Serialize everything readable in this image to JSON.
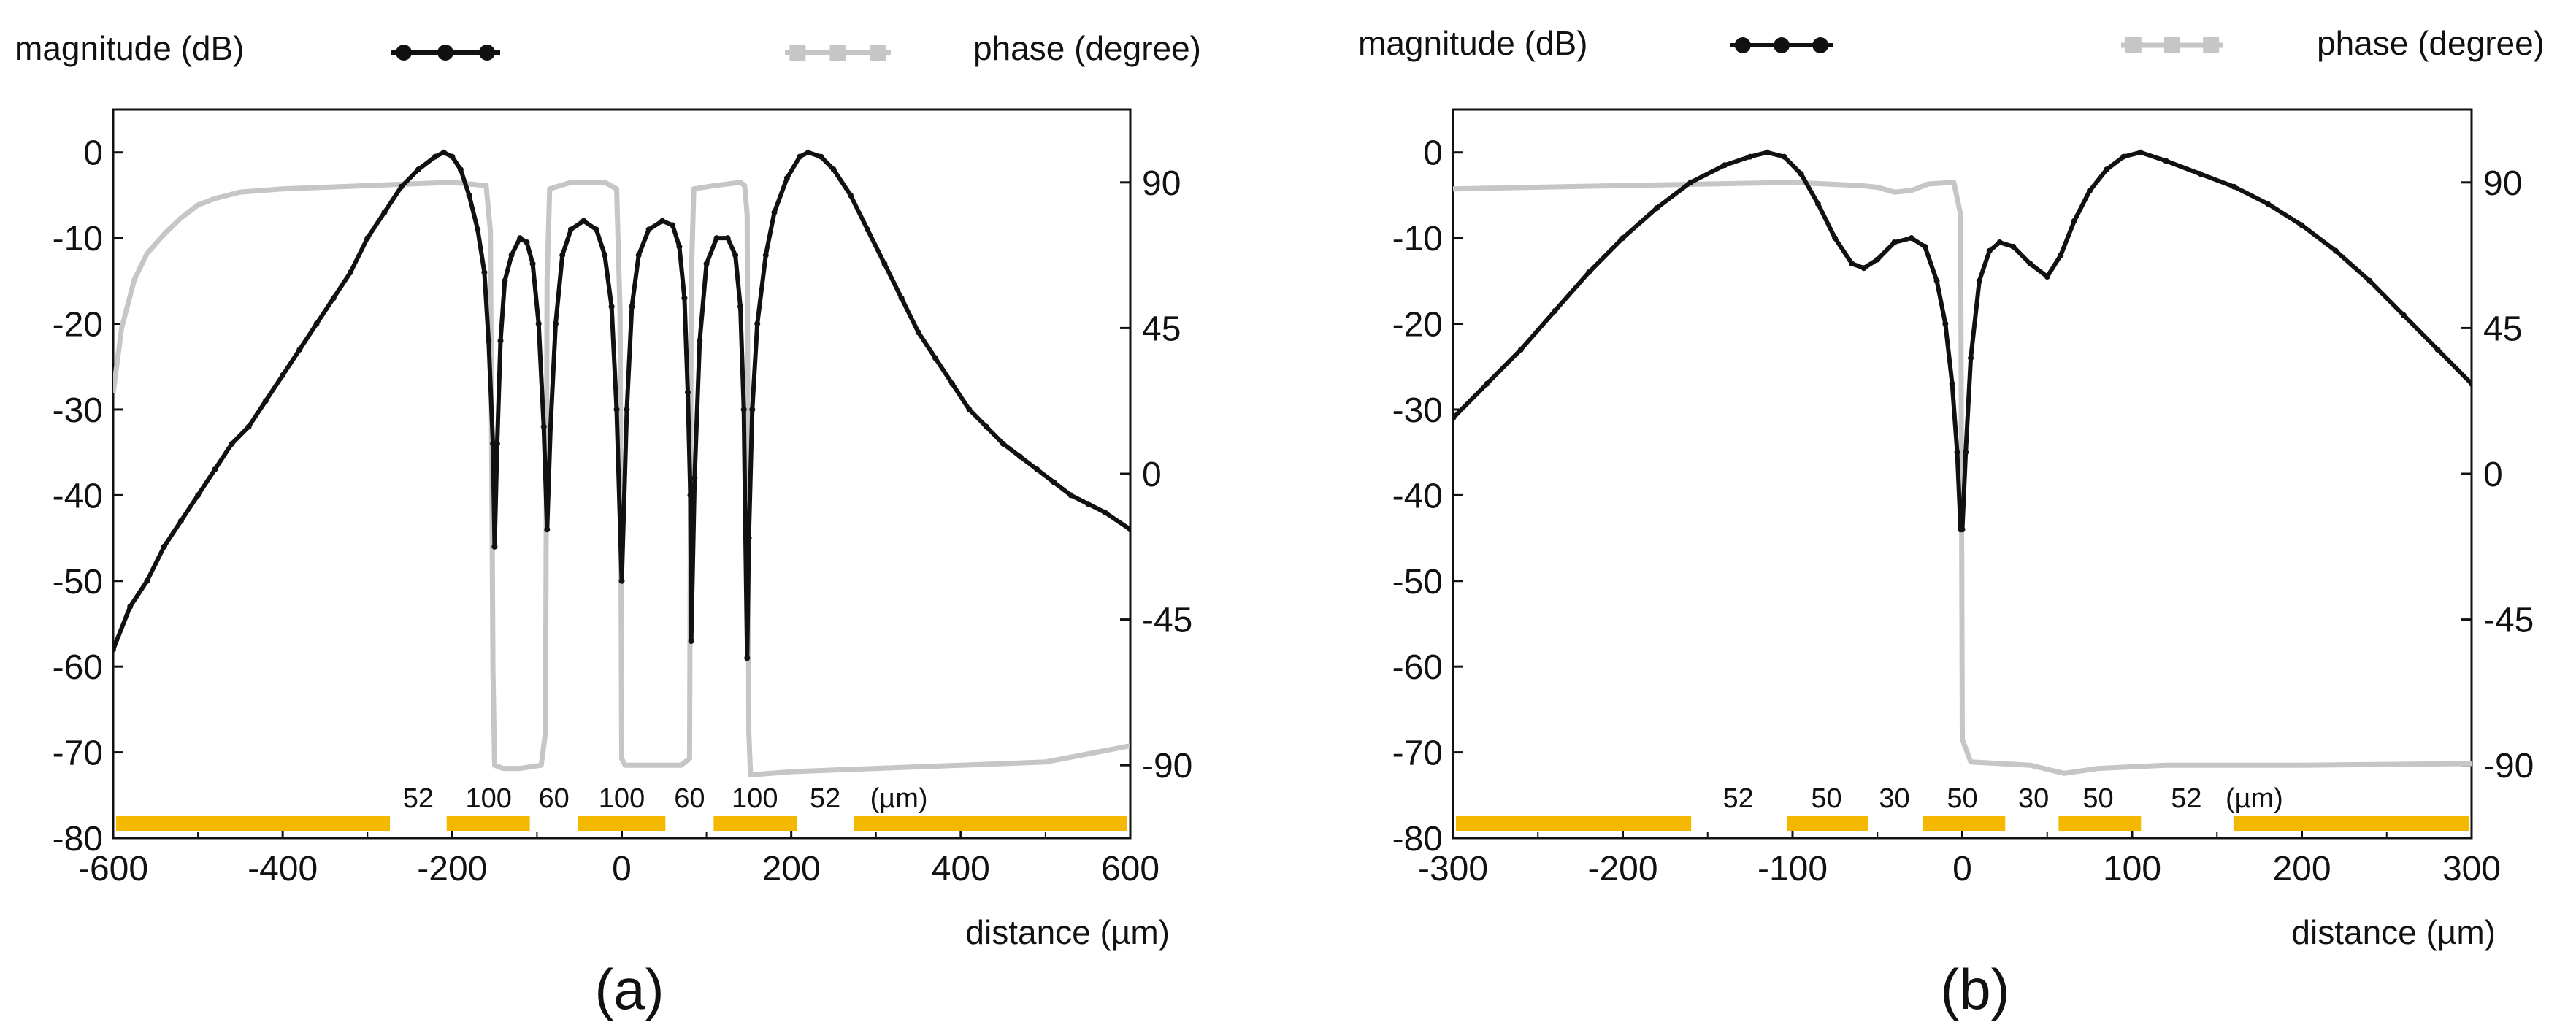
{
  "chart_data": [
    {
      "id": "a",
      "type": "line",
      "panel_label": "(a)",
      "xlabel": "distance (µm)",
      "ylabel_left": "magnitude (dB)",
      "ylabel_right": "phase (degree)",
      "xlim": [
        -600,
        600
      ],
      "ylim_left": [
        -80,
        5
      ],
      "ylim_right": [
        -112.5,
        112.5
      ],
      "x_ticks": [
        -600,
        -400,
        -200,
        0,
        200,
        400,
        600
      ],
      "y_ticks_left": [
        0,
        -10,
        -20,
        -30,
        -40,
        -50,
        -60,
        -70,
        -80
      ],
      "y_ticks_right": [
        90,
        45,
        0,
        -45,
        -90
      ],
      "legend": [
        {
          "label": "magnitude (dB)",
          "color": "#111111",
          "marker": "circle"
        },
        {
          "label": "phase (degree)",
          "color": "#c6c6c6",
          "marker": "square"
        }
      ],
      "series": [
        {
          "name": "magnitude (dB)",
          "axis": "left",
          "color": "#111111",
          "points": [
            [
              -600,
              -58
            ],
            [
              -580,
              -53
            ],
            [
              -560,
              -50
            ],
            [
              -540,
              -46
            ],
            [
              -520,
              -43
            ],
            [
              -500,
              -40
            ],
            [
              -480,
              -37
            ],
            [
              -460,
              -34
            ],
            [
              -440,
              -32
            ],
            [
              -420,
              -29
            ],
            [
              -400,
              -26
            ],
            [
              -380,
              -23
            ],
            [
              -360,
              -20
            ],
            [
              -340,
              -17
            ],
            [
              -320,
              -14
            ],
            [
              -300,
              -10
            ],
            [
              -280,
              -7
            ],
            [
              -260,
              -4
            ],
            [
              -240,
              -2
            ],
            [
              -220,
              -0.5
            ],
            [
              -210,
              0
            ],
            [
              -200,
              -0.5
            ],
            [
              -190,
              -2
            ],
            [
              -180,
              -5
            ],
            [
              -170,
              -9
            ],
            [
              -162,
              -14
            ],
            [
              -157,
              -22
            ],
            [
              -152,
              -34
            ],
            [
              -150,
              -46
            ],
            [
              -147,
              -34
            ],
            [
              -143,
              -22
            ],
            [
              -138,
              -15
            ],
            [
              -130,
              -12
            ],
            [
              -120,
              -10
            ],
            [
              -112,
              -10.5
            ],
            [
              -105,
              -13
            ],
            [
              -98,
              -20
            ],
            [
              -92,
              -32
            ],
            [
              -88,
              -44
            ],
            [
              -84,
              -32
            ],
            [
              -78,
              -20
            ],
            [
              -70,
              -12
            ],
            [
              -60,
              -9
            ],
            [
              -45,
              -8
            ],
            [
              -30,
              -9
            ],
            [
              -20,
              -12
            ],
            [
              -12,
              -18
            ],
            [
              -6,
              -30
            ],
            [
              0,
              -50
            ],
            [
              6,
              -30
            ],
            [
              12,
              -18
            ],
            [
              20,
              -12
            ],
            [
              32,
              -9
            ],
            [
              48,
              -8
            ],
            [
              60,
              -8.5
            ],
            [
              68,
              -11
            ],
            [
              74,
              -17
            ],
            [
              78,
              -28
            ],
            [
              81,
              -40
            ],
            [
              82,
              -57
            ],
            [
              86,
              -38
            ],
            [
              92,
              -22
            ],
            [
              100,
              -13
            ],
            [
              112,
              -10
            ],
            [
              125,
              -10
            ],
            [
              134,
              -12
            ],
            [
              140,
              -18
            ],
            [
              144,
              -30
            ],
            [
              146,
              -45
            ],
            [
              148,
              -59
            ],
            [
              150,
              -45
            ],
            [
              154,
              -30
            ],
            [
              160,
              -20
            ],
            [
              170,
              -12
            ],
            [
              180,
              -7
            ],
            [
              195,
              -3
            ],
            [
              210,
              -0.5
            ],
            [
              220,
              0
            ],
            [
              235,
              -0.5
            ],
            [
              250,
              -2
            ],
            [
              270,
              -5
            ],
            [
              290,
              -9
            ],
            [
              310,
              -13
            ],
            [
              330,
              -17
            ],
            [
              350,
              -21
            ],
            [
              370,
              -24
            ],
            [
              390,
              -27
            ],
            [
              410,
              -30
            ],
            [
              430,
              -32
            ],
            [
              450,
              -34
            ],
            [
              470,
              -35.5
            ],
            [
              490,
              -37
            ],
            [
              510,
              -38.5
            ],
            [
              530,
              -40
            ],
            [
              550,
              -41
            ],
            [
              570,
              -42
            ],
            [
              600,
              -44
            ]
          ]
        },
        {
          "name": "phase (degree)",
          "axis": "right",
          "color": "#c6c6c6",
          "points": [
            [
              -600,
              25
            ],
            [
              -590,
              45
            ],
            [
              -575,
              60
            ],
            [
              -560,
              68
            ],
            [
              -540,
              74
            ],
            [
              -520,
              79
            ],
            [
              -500,
              83
            ],
            [
              -480,
              85
            ],
            [
              -450,
              87
            ],
            [
              -400,
              88
            ],
            [
              -300,
              89
            ],
            [
              -200,
              90
            ],
            [
              -160,
              89
            ],
            [
              -155,
              75
            ],
            [
              -152,
              -60
            ],
            [
              -150,
              -90
            ],
            [
              -140,
              -91
            ],
            [
              -120,
              -91
            ],
            [
              -95,
              -90
            ],
            [
              -90,
              -80
            ],
            [
              -88,
              60
            ],
            [
              -85,
              88
            ],
            [
              -60,
              90
            ],
            [
              -20,
              90
            ],
            [
              -6,
              88
            ],
            [
              -2,
              50
            ],
            [
              0,
              -88
            ],
            [
              4,
              -90
            ],
            [
              40,
              -90
            ],
            [
              70,
              -90
            ],
            [
              80,
              -88
            ],
            [
              82,
              60
            ],
            [
              85,
              88
            ],
            [
              110,
              89
            ],
            [
              140,
              90
            ],
            [
              145,
              89
            ],
            [
              148,
              80
            ],
            [
              150,
              -80
            ],
            [
              152,
              -93
            ],
            [
              200,
              -92
            ],
            [
              300,
              -91
            ],
            [
              400,
              -90
            ],
            [
              500,
              -89
            ],
            [
              560,
              -86
            ],
            [
              600,
              -84
            ]
          ]
        }
      ],
      "segments": {
        "bars": [
          [
            -600,
            -270
          ],
          [
            -210,
            -105
          ],
          [
            -55,
            55
          ],
          [
            105,
            210
          ],
          [
            270,
            600
          ]
        ],
        "labels": [
          {
            "x": -240,
            "text": "52"
          },
          {
            "x": -157,
            "text": "100"
          },
          {
            "x": -80,
            "text": "60"
          },
          {
            "x": 0,
            "text": "100"
          },
          {
            "x": 80,
            "text": "60"
          },
          {
            "x": 157,
            "text": "100"
          },
          {
            "x": 240,
            "text": "52"
          },
          {
            "x": 327,
            "text": "(µm)"
          }
        ]
      }
    },
    {
      "id": "b",
      "type": "line",
      "panel_label": "(b)",
      "xlabel": "distance (µm)",
      "ylabel_left": "magnitude (dB)",
      "ylabel_right": "phase (degree)",
      "xlim": [
        -300,
        300
      ],
      "ylim_left": [
        -80,
        5
      ],
      "ylim_right": [
        -112.5,
        112.5
      ],
      "x_ticks": [
        -300,
        -200,
        -100,
        0,
        100,
        200,
        300
      ],
      "y_ticks_left": [
        0,
        -10,
        -20,
        -30,
        -40,
        -50,
        -60,
        -70,
        -80
      ],
      "y_ticks_right": [
        90,
        45,
        0,
        -45,
        -90
      ],
      "legend": [
        {
          "label": "magnitude (dB)",
          "color": "#111111",
          "marker": "circle"
        },
        {
          "label": "phase (degree)",
          "color": "#c6c6c6",
          "marker": "square"
        }
      ],
      "series": [
        {
          "name": "magnitude (dB)",
          "axis": "left",
          "color": "#111111",
          "points": [
            [
              -300,
              -31
            ],
            [
              -280,
              -27
            ],
            [
              -260,
              -23
            ],
            [
              -240,
              -18.5
            ],
            [
              -220,
              -14
            ],
            [
              -200,
              -10
            ],
            [
              -180,
              -6.5
            ],
            [
              -160,
              -3.5
            ],
            [
              -140,
              -1.5
            ],
            [
              -125,
              -0.5
            ],
            [
              -115,
              0
            ],
            [
              -105,
              -0.5
            ],
            [
              -95,
              -2.5
            ],
            [
              -85,
              -6
            ],
            [
              -75,
              -10
            ],
            [
              -65,
              -13
            ],
            [
              -58,
              -13.5
            ],
            [
              -50,
              -12.5
            ],
            [
              -40,
              -10.5
            ],
            [
              -30,
              -10
            ],
            [
              -22,
              -11
            ],
            [
              -15,
              -15
            ],
            [
              -10,
              -20
            ],
            [
              -6,
              -27
            ],
            [
              -3,
              -35
            ],
            [
              -1,
              -44
            ],
            [
              0,
              -44
            ],
            [
              2,
              -35
            ],
            [
              5,
              -24
            ],
            [
              10,
              -15
            ],
            [
              16,
              -11.5
            ],
            [
              22,
              -10.5
            ],
            [
              30,
              -11
            ],
            [
              40,
              -13
            ],
            [
              50,
              -14.5
            ],
            [
              58,
              -12
            ],
            [
              66,
              -8
            ],
            [
              75,
              -4.5
            ],
            [
              85,
              -2
            ],
            [
              95,
              -0.5
            ],
            [
              105,
              0
            ],
            [
              120,
              -1
            ],
            [
              140,
              -2.5
            ],
            [
              160,
              -4
            ],
            [
              180,
              -6
            ],
            [
              200,
              -8.5
            ],
            [
              220,
              -11.5
            ],
            [
              240,
              -15
            ],
            [
              260,
              -19
            ],
            [
              280,
              -23
            ],
            [
              300,
              -27
            ]
          ]
        },
        {
          "name": "phase (degree)",
          "axis": "right",
          "color": "#c6c6c6",
          "points": [
            [
              -300,
              88
            ],
            [
              -200,
              89
            ],
            [
              -100,
              90
            ],
            [
              -60,
              89
            ],
            [
              -50,
              88.5
            ],
            [
              -40,
              87
            ],
            [
              -30,
              87.5
            ],
            [
              -20,
              89.5
            ],
            [
              -5,
              90
            ],
            [
              -1,
              80
            ],
            [
              0,
              -82
            ],
            [
              5,
              -89
            ],
            [
              40,
              -90
            ],
            [
              60,
              -92.5
            ],
            [
              80,
              -91
            ],
            [
              120,
              -90
            ],
            [
              200,
              -90
            ],
            [
              300,
              -89.5
            ]
          ]
        }
      ],
      "segments": {
        "bars": [
          [
            -300,
            -158
          ],
          [
            -105,
            -54
          ],
          [
            -25,
            27
          ],
          [
            55,
            107
          ],
          [
            158,
            300
          ]
        ],
        "labels": [
          {
            "x": -132,
            "text": "52"
          },
          {
            "x": -80,
            "text": "50"
          },
          {
            "x": -40,
            "text": "30"
          },
          {
            "x": 0,
            "text": "50"
          },
          {
            "x": 42,
            "text": "30"
          },
          {
            "x": 80,
            "text": "50"
          },
          {
            "x": 132,
            "text": "52"
          },
          {
            "x": 172,
            "text": "(µm)"
          }
        ]
      }
    }
  ]
}
